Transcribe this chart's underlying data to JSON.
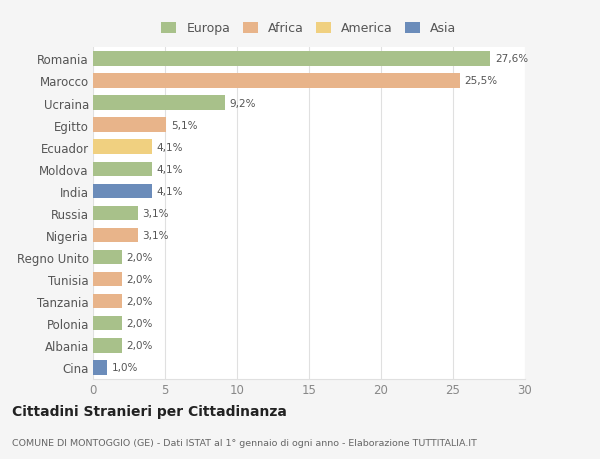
{
  "countries": [
    "Romania",
    "Marocco",
    "Ucraina",
    "Egitto",
    "Ecuador",
    "Moldova",
    "India",
    "Russia",
    "Nigeria",
    "Regno Unito",
    "Tunisia",
    "Tanzania",
    "Polonia",
    "Albania",
    "Cina"
  ],
  "values": [
    27.6,
    25.5,
    9.2,
    5.1,
    4.1,
    4.1,
    4.1,
    3.1,
    3.1,
    2.0,
    2.0,
    2.0,
    2.0,
    2.0,
    1.0
  ],
  "labels": [
    "27,6%",
    "25,5%",
    "9,2%",
    "5,1%",
    "4,1%",
    "4,1%",
    "4,1%",
    "3,1%",
    "3,1%",
    "2,0%",
    "2,0%",
    "2,0%",
    "2,0%",
    "2,0%",
    "1,0%"
  ],
  "colors": [
    "#a8c18a",
    "#e8b48a",
    "#a8c18a",
    "#e8b48a",
    "#f0d080",
    "#a8c18a",
    "#6b8cba",
    "#a8c18a",
    "#e8b48a",
    "#a8c18a",
    "#e8b48a",
    "#e8b48a",
    "#a8c18a",
    "#a8c18a",
    "#6b8cba"
  ],
  "legend_labels": [
    "Europa",
    "Africa",
    "America",
    "Asia"
  ],
  "legend_colors": [
    "#a8c18a",
    "#e8b48a",
    "#f0d080",
    "#6b8cba"
  ],
  "title": "Cittadini Stranieri per Cittadinanza",
  "subtitle": "COMUNE DI MONTOGGIO (GE) - Dati ISTAT al 1° gennaio di ogni anno - Elaborazione TUTTITALIA.IT",
  "xlim": [
    0,
    30
  ],
  "xticks": [
    0,
    5,
    10,
    15,
    20,
    25,
    30
  ],
  "background_color": "#f5f5f5",
  "bar_background": "#ffffff",
  "grid_color": "#e0e0e0"
}
